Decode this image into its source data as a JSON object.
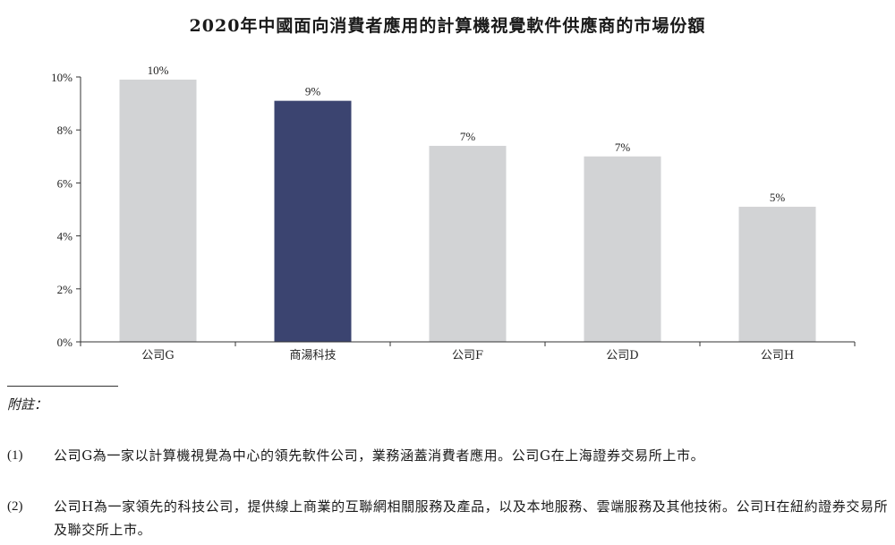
{
  "title": "2020年中國面向消費者應用的計算機視覺軟件供應商的市場份額",
  "chart_data": {
    "type": "bar",
    "title": "2020年中國面向消費者應用的計算機視覺軟件供應商的市場份額",
    "categories": [
      "公司G",
      "商湯科技",
      "公司F",
      "公司D",
      "公司H"
    ],
    "values": [
      9.9,
      9.1,
      7.4,
      7.0,
      5.1
    ],
    "data_labels": [
      "10%",
      "9%",
      "7%",
      "7%",
      "5%"
    ],
    "ylim": [
      0,
      10
    ],
    "yticks": [
      "0%",
      "2%",
      "4%",
      "6%",
      "8%",
      "10%"
    ],
    "ytick_values": [
      0,
      2,
      4,
      6,
      8,
      10
    ],
    "xlabel": "",
    "ylabel": "",
    "grid": false,
    "colors": {
      "default": "#d2d3d5",
      "highlight": "#3b4470"
    },
    "highlight_index": 1
  },
  "notes": {
    "heading": "附註：",
    "items": [
      {
        "num": "(1)",
        "text": "公司G為一家以計算機視覺為中心的領先軟件公司，業務涵蓋消費者應用。公司G在上海證券交易所上市。"
      },
      {
        "num": "(2)",
        "text": "公司H為一家領先的科技公司，提供線上商業的互聯網相關服務及產品，以及本地服務、雲端服務及其他技術。公司H在紐約證券交易所及聯交所上市。"
      }
    ]
  }
}
